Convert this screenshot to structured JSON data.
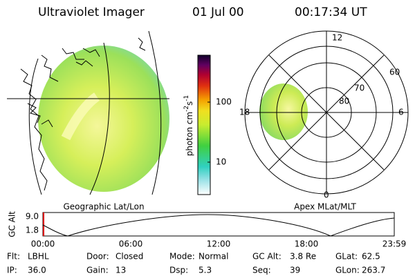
{
  "header": {
    "instrument": "Ultraviolet Imager",
    "date": "01 Jul 00",
    "time": "00:17:34 UT"
  },
  "geo_panel": {
    "label": "Geographic Lat/Lon"
  },
  "colorbar": {
    "unit_parts": [
      "photon cm",
      "-2",
      "s",
      "-1"
    ],
    "ticks": [
      "100",
      "10"
    ]
  },
  "polar": {
    "label": "Apex MLat/MLT",
    "mlt": [
      "12",
      "6",
      "0",
      "18"
    ],
    "mlat": [
      "60",
      "70",
      "80"
    ]
  },
  "alt_plot": {
    "ylabel": "GC Alt",
    "yticks": [
      "9.0",
      "1.8"
    ],
    "xticks": [
      "00:00",
      "06:00",
      "12:00",
      "18:00",
      "23:59"
    ]
  },
  "footer": {
    "rows": [
      [
        {
          "label": "Flt:",
          "value": "LBHL"
        },
        {
          "label": "Door:",
          "value": "Closed"
        },
        {
          "label": "Mode:",
          "value": "Normal"
        },
        {
          "label": "GC Alt:",
          "value": "3.8 Re"
        },
        {
          "label": "GLat:",
          "value": "62.5"
        }
      ],
      [
        {
          "label": "IP:",
          "value": "36.0"
        },
        {
          "label": "Gain:",
          "value": "13"
        },
        {
          "label": "Dsp:",
          "value": "5.3"
        },
        {
          "label": "Seq:",
          "value": "39"
        },
        {
          "label": "GLon:",
          "value": "263.7"
        }
      ]
    ]
  }
}
